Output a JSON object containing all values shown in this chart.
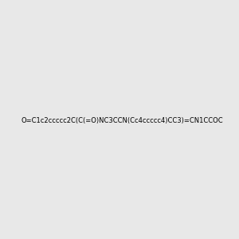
{
  "smiles": "O=C1c2ccccc2C(C(=O)NC3CCN(Cc4ccccc4)CC3)=CN1CCOC",
  "title": "",
  "bg_color": "#e8e8e8",
  "fig_width": 3.0,
  "fig_height": 3.0,
  "dpi": 100
}
